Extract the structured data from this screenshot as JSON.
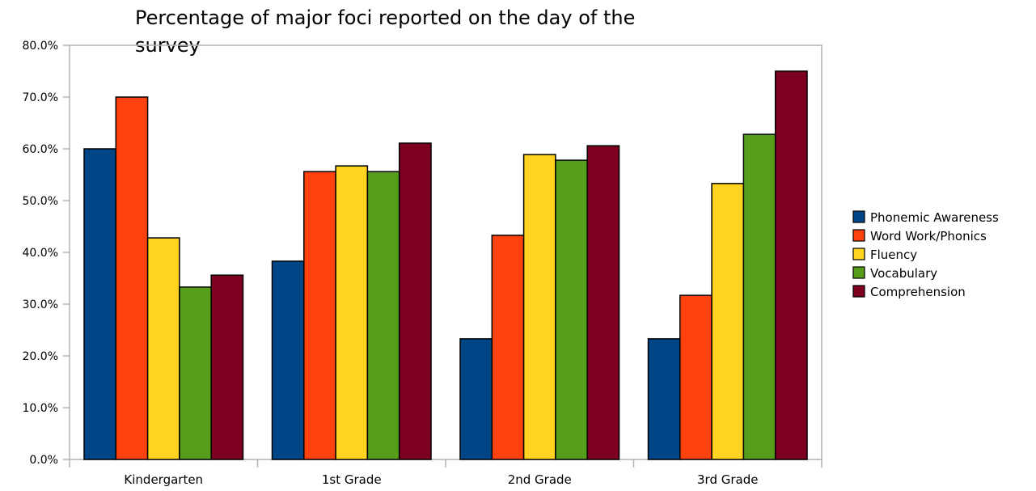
{
  "chart_data": {
    "type": "bar",
    "title": "Percentage of major foci reported on the day of the survey",
    "title_lines": [
      "Percentage of major foci reported on the day of the",
      "survey"
    ],
    "xlabel": "",
    "ylabel": "",
    "ylim": [
      0,
      80
    ],
    "yticks": [
      "0.0%",
      "10.0%",
      "20.0%",
      "30.0%",
      "40.0%",
      "50.0%",
      "60.0%",
      "70.0%",
      "80.0%"
    ],
    "categories": [
      "Kindergarten",
      "1st Grade",
      "2nd Grade",
      "3rd Grade"
    ],
    "series": [
      {
        "name": "Phonemic Awareness",
        "color": "#004586",
        "values": [
          60.0,
          38.3,
          23.3,
          23.3
        ]
      },
      {
        "name": "Word Work/Phonics",
        "color": "#ff420e",
        "values": [
          70.0,
          55.6,
          43.3,
          31.7
        ]
      },
      {
        "name": "Fluency",
        "color": "#ffd320",
        "values": [
          42.8,
          56.7,
          58.9,
          53.3
        ]
      },
      {
        "name": "Vocabulary",
        "color": "#579d1c",
        "values": [
          33.3,
          55.6,
          57.8,
          62.8
        ]
      },
      {
        "name": "Comprehension",
        "color": "#7e0021",
        "values": [
          35.6,
          61.1,
          60.6,
          75.0
        ]
      }
    ],
    "grid": false,
    "legend": "right"
  }
}
